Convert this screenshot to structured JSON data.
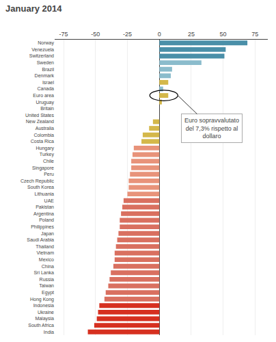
{
  "chart_data": {
    "type": "bar",
    "orientation": "horizontal",
    "title": "January 2014",
    "categories": [
      "Norway",
      "Venezuela",
      "Switzerland",
      "Sweden",
      "Brazil",
      "Denmark",
      "Israel",
      "Canada",
      "Euro area",
      "Uruguay",
      "Britain",
      "United States",
      "New Zealand",
      "Australia",
      "Colombia",
      "Costa Rica",
      "Hungary",
      "Turkey",
      "Chile",
      "Singapore",
      "Peru",
      "Czech Republic",
      "South Korea",
      "Lithuania",
      "UAE",
      "Pakistan",
      "Argentina",
      "Poland",
      "Philippines",
      "Japan",
      "Saudi Arabia",
      "Thailand",
      "Vietnam",
      "Mexico",
      "China",
      "Sri Lanka",
      "Russia",
      "Taiwan",
      "Egypt",
      "Hong Kong",
      "Indonesia",
      "Ukraine",
      "Malaysia",
      "South Africa",
      "India"
    ],
    "values": [
      69,
      52,
      51,
      33,
      10,
      9,
      7,
      3,
      7,
      2,
      0,
      0,
      -5,
      -8,
      -13,
      -14,
      -20,
      -21,
      -22,
      -22,
      -23,
      -24,
      -24,
      -25,
      -28,
      -29,
      -30,
      -31,
      -31,
      -32,
      -33,
      -34,
      -35,
      -35,
      -36,
      -38,
      -39,
      -40,
      -42,
      -43,
      -47,
      -48,
      -49,
      -51,
      -56
    ],
    "colors": [
      "#4a8fa8",
      "#4a8fa8",
      "#4a8fa8",
      "#8bbccc",
      "#8bbccc",
      "#8bbccc",
      "#d4b84a",
      "#8bbccc",
      "#d4b84a",
      "#d4b84a",
      "#d4b84a",
      "#d4b84a",
      "#d4b84a",
      "#d4b84a",
      "#d4b84a",
      "#d4b84a",
      "#e8937a",
      "#e8937a",
      "#e8937a",
      "#e8937a",
      "#e8937a",
      "#e8937a",
      "#e8937a",
      "#e8937a",
      "#d97060",
      "#d97060",
      "#d97060",
      "#d97060",
      "#d97060",
      "#d97060",
      "#d97060",
      "#d97060",
      "#d97060",
      "#d97060",
      "#d97060",
      "#d97060",
      "#d97060",
      "#d97060",
      "#d97060",
      "#d97060",
      "#d63020",
      "#d63020",
      "#d63020",
      "#d63020",
      "#d63020"
    ],
    "xlim": [
      -82,
      85
    ],
    "xticks": [
      -75,
      -50,
      -25,
      0,
      25,
      50,
      75
    ],
    "grid": true,
    "annotation": {
      "text": "Euro sopravvalutato\ndel 7,3% rispetto al\ndollaro",
      "category": "Euro area"
    }
  }
}
